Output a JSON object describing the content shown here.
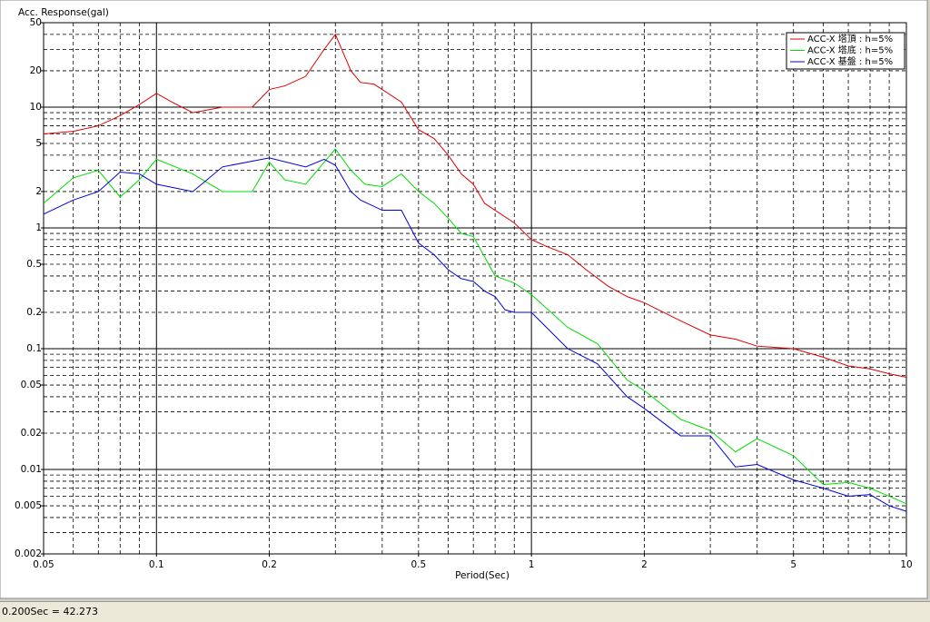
{
  "chart_data": {
    "type": "line",
    "title": "Acc. Response(gal)",
    "x_label": "Period(Sec)",
    "log_x": true,
    "log_y": true,
    "grid": true,
    "legend": "upper right",
    "xlim": [
      0.05,
      10
    ],
    "ylim": [
      0.002,
      50
    ],
    "xticks": [
      0.05,
      0.1,
      0.2,
      0.5,
      1,
      2,
      5,
      10
    ],
    "yticks": [
      50,
      20,
      10,
      5,
      2,
      1,
      0.5,
      0.2,
      0.1,
      0.05,
      0.02,
      0.01,
      0.005,
      0.002
    ],
    "x_major_grid": [
      0.1,
      1,
      10
    ],
    "y_major_grid": [
      10,
      1,
      0.1,
      0.01
    ],
    "x_minor_grid": [
      0.06,
      0.07,
      0.08,
      0.09,
      0.2,
      0.3,
      0.4,
      0.5,
      0.6,
      0.7,
      0.8,
      0.9,
      2,
      3,
      4,
      5,
      6,
      7,
      8,
      9
    ],
    "y_minor_grid": [
      40,
      30,
      20,
      9,
      8,
      7,
      6,
      5,
      4,
      3,
      2,
      0.9,
      0.8,
      0.7,
      0.6,
      0.5,
      0.4,
      0.3,
      0.2,
      0.09,
      0.08,
      0.07,
      0.06,
      0.05,
      0.04,
      0.03,
      0.02,
      0.009,
      0.008,
      0.007,
      0.006,
      0.005,
      0.004,
      0.003
    ],
    "series": [
      {
        "name": "ACC-X 塔頂 : h=5%",
        "color": "#e00000",
        "x": [
          0.05,
          0.06,
          0.07,
          0.08,
          0.09,
          0.1,
          0.11,
          0.125,
          0.15,
          0.16,
          0.18,
          0.2,
          0.22,
          0.25,
          0.28,
          0.3,
          0.33,
          0.35,
          0.38,
          0.4,
          0.45,
          0.5,
          0.55,
          0.6,
          0.65,
          0.7,
          0.75,
          0.8,
          0.9,
          1,
          1.1,
          1.25,
          1.4,
          1.6,
          1.8,
          2,
          2.5,
          3,
          3.5,
          4,
          5,
          6,
          7,
          8,
          9,
          10
        ],
        "values": [
          6,
          6.3,
          7,
          8.5,
          10.5,
          13,
          11,
          9,
          10,
          10,
          10,
          14,
          15,
          18,
          30,
          40,
          20,
          16,
          15.5,
          14,
          11,
          6.5,
          5.5,
          4,
          2.8,
          2.3,
          1.6,
          1.4,
          1.1,
          0.8,
          0.7,
          0.6,
          0.45,
          0.33,
          0.27,
          0.24,
          0.17,
          0.13,
          0.12,
          0.105,
          0.1,
          0.085,
          0.072,
          0.068,
          0.062,
          0.058
        ]
      },
      {
        "name": "ACC-X 塔底 : h=5%",
        "color": "#00dd00",
        "x": [
          0.05,
          0.06,
          0.07,
          0.08,
          0.09,
          0.1,
          0.125,
          0.15,
          0.18,
          0.2,
          0.22,
          0.25,
          0.3,
          0.33,
          0.36,
          0.4,
          0.45,
          0.5,
          0.55,
          0.6,
          0.65,
          0.7,
          0.8,
          0.9,
          1,
          1.25,
          1.5,
          1.8,
          2,
          2.5,
          3,
          3.5,
          4,
          5,
          6,
          7,
          8,
          9,
          10
        ],
        "values": [
          1.6,
          2.6,
          3,
          1.8,
          2.5,
          3.7,
          2.8,
          2,
          2,
          3.5,
          2.5,
          2.3,
          4.5,
          3,
          2.3,
          2.2,
          2.8,
          2,
          1.6,
          1.2,
          0.9,
          0.85,
          0.4,
          0.35,
          0.28,
          0.15,
          0.11,
          0.055,
          0.045,
          0.026,
          0.021,
          0.014,
          0.018,
          0.013,
          0.0075,
          0.0078,
          0.007,
          0.006,
          0.0052
        ]
      },
      {
        "name": "ACC-X 基盤 : h=5%",
        "color": "#0000dd",
        "x": [
          0.05,
          0.06,
          0.07,
          0.08,
          0.09,
          0.1,
          0.125,
          0.15,
          0.2,
          0.25,
          0.28,
          0.3,
          0.33,
          0.35,
          0.4,
          0.45,
          0.5,
          0.55,
          0.6,
          0.65,
          0.7,
          0.75,
          0.8,
          0.85,
          0.9,
          1,
          1.25,
          1.5,
          1.8,
          2,
          2.5,
          3,
          3.5,
          4,
          5,
          6,
          7,
          8,
          9,
          10
        ],
        "values": [
          1.3,
          1.7,
          2,
          2.9,
          2.8,
          2.3,
          2,
          3.2,
          3.8,
          3.2,
          3.7,
          3.3,
          2,
          1.7,
          1.4,
          1.4,
          0.75,
          0.6,
          0.45,
          0.38,
          0.36,
          0.3,
          0.27,
          0.21,
          0.2,
          0.2,
          0.1,
          0.075,
          0.04,
          0.032,
          0.019,
          0.019,
          0.0105,
          0.011,
          0.0082,
          0.007,
          0.006,
          0.0062,
          0.005,
          0.0045
        ]
      }
    ]
  },
  "status_bar": {
    "text": "0.200Sec = 42.273"
  }
}
